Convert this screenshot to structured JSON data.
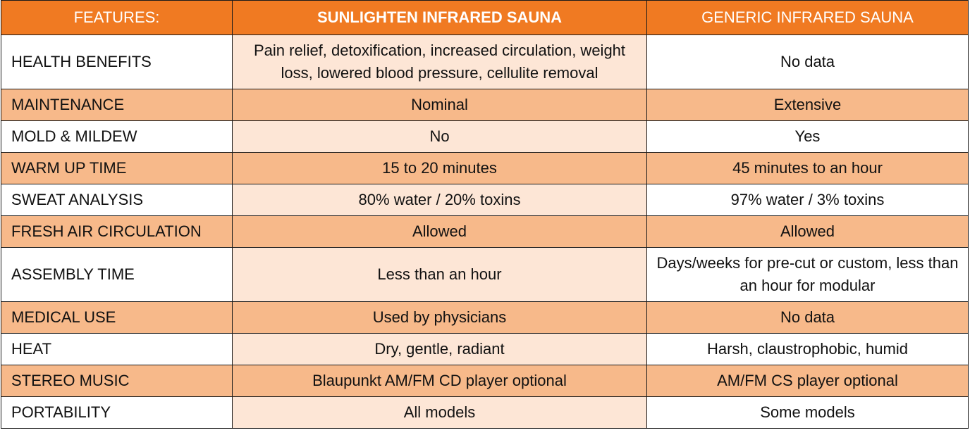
{
  "table": {
    "header": [
      "FEATURES:",
      "SUNLIGHTEN INFRARED SAUNA",
      "GENERIC INFRARED SAUNA"
    ],
    "rows": [
      [
        "HEALTH BENEFITS",
        "Pain relief, detoxification, increased circulation, weight loss, lowered blood pressure, cellulite removal",
        "No data"
      ],
      [
        "MAINTENANCE",
        "Nominal",
        "Extensive"
      ],
      [
        "MOLD & MILDEW",
        "No",
        "Yes"
      ],
      [
        "WARM UP TIME",
        "15 to 20 minutes",
        "45 minutes to an hour"
      ],
      [
        "SWEAT ANALYSIS",
        "80% water / 20% toxins",
        "97% water / 3% toxins"
      ],
      [
        "FRESH AIR CIRCULATION",
        "Allowed",
        "Allowed"
      ],
      [
        "ASSEMBLY TIME",
        "Less than an hour",
        "Days/weeks for pre-cut or custom, less than an hour for modular"
      ],
      [
        "MEDICAL USE",
        "Used by physicians",
        "No data"
      ],
      [
        "HEAT",
        "Dry, gentle, radiant",
        "Harsh, claustrophobic, humid"
      ],
      [
        "STEREO MUSIC",
        "Blaupunkt AM/FM CD player optional",
        "AM/FM CS player optional"
      ],
      [
        "PORTABILITY",
        "All models",
        "Some models"
      ]
    ]
  }
}
